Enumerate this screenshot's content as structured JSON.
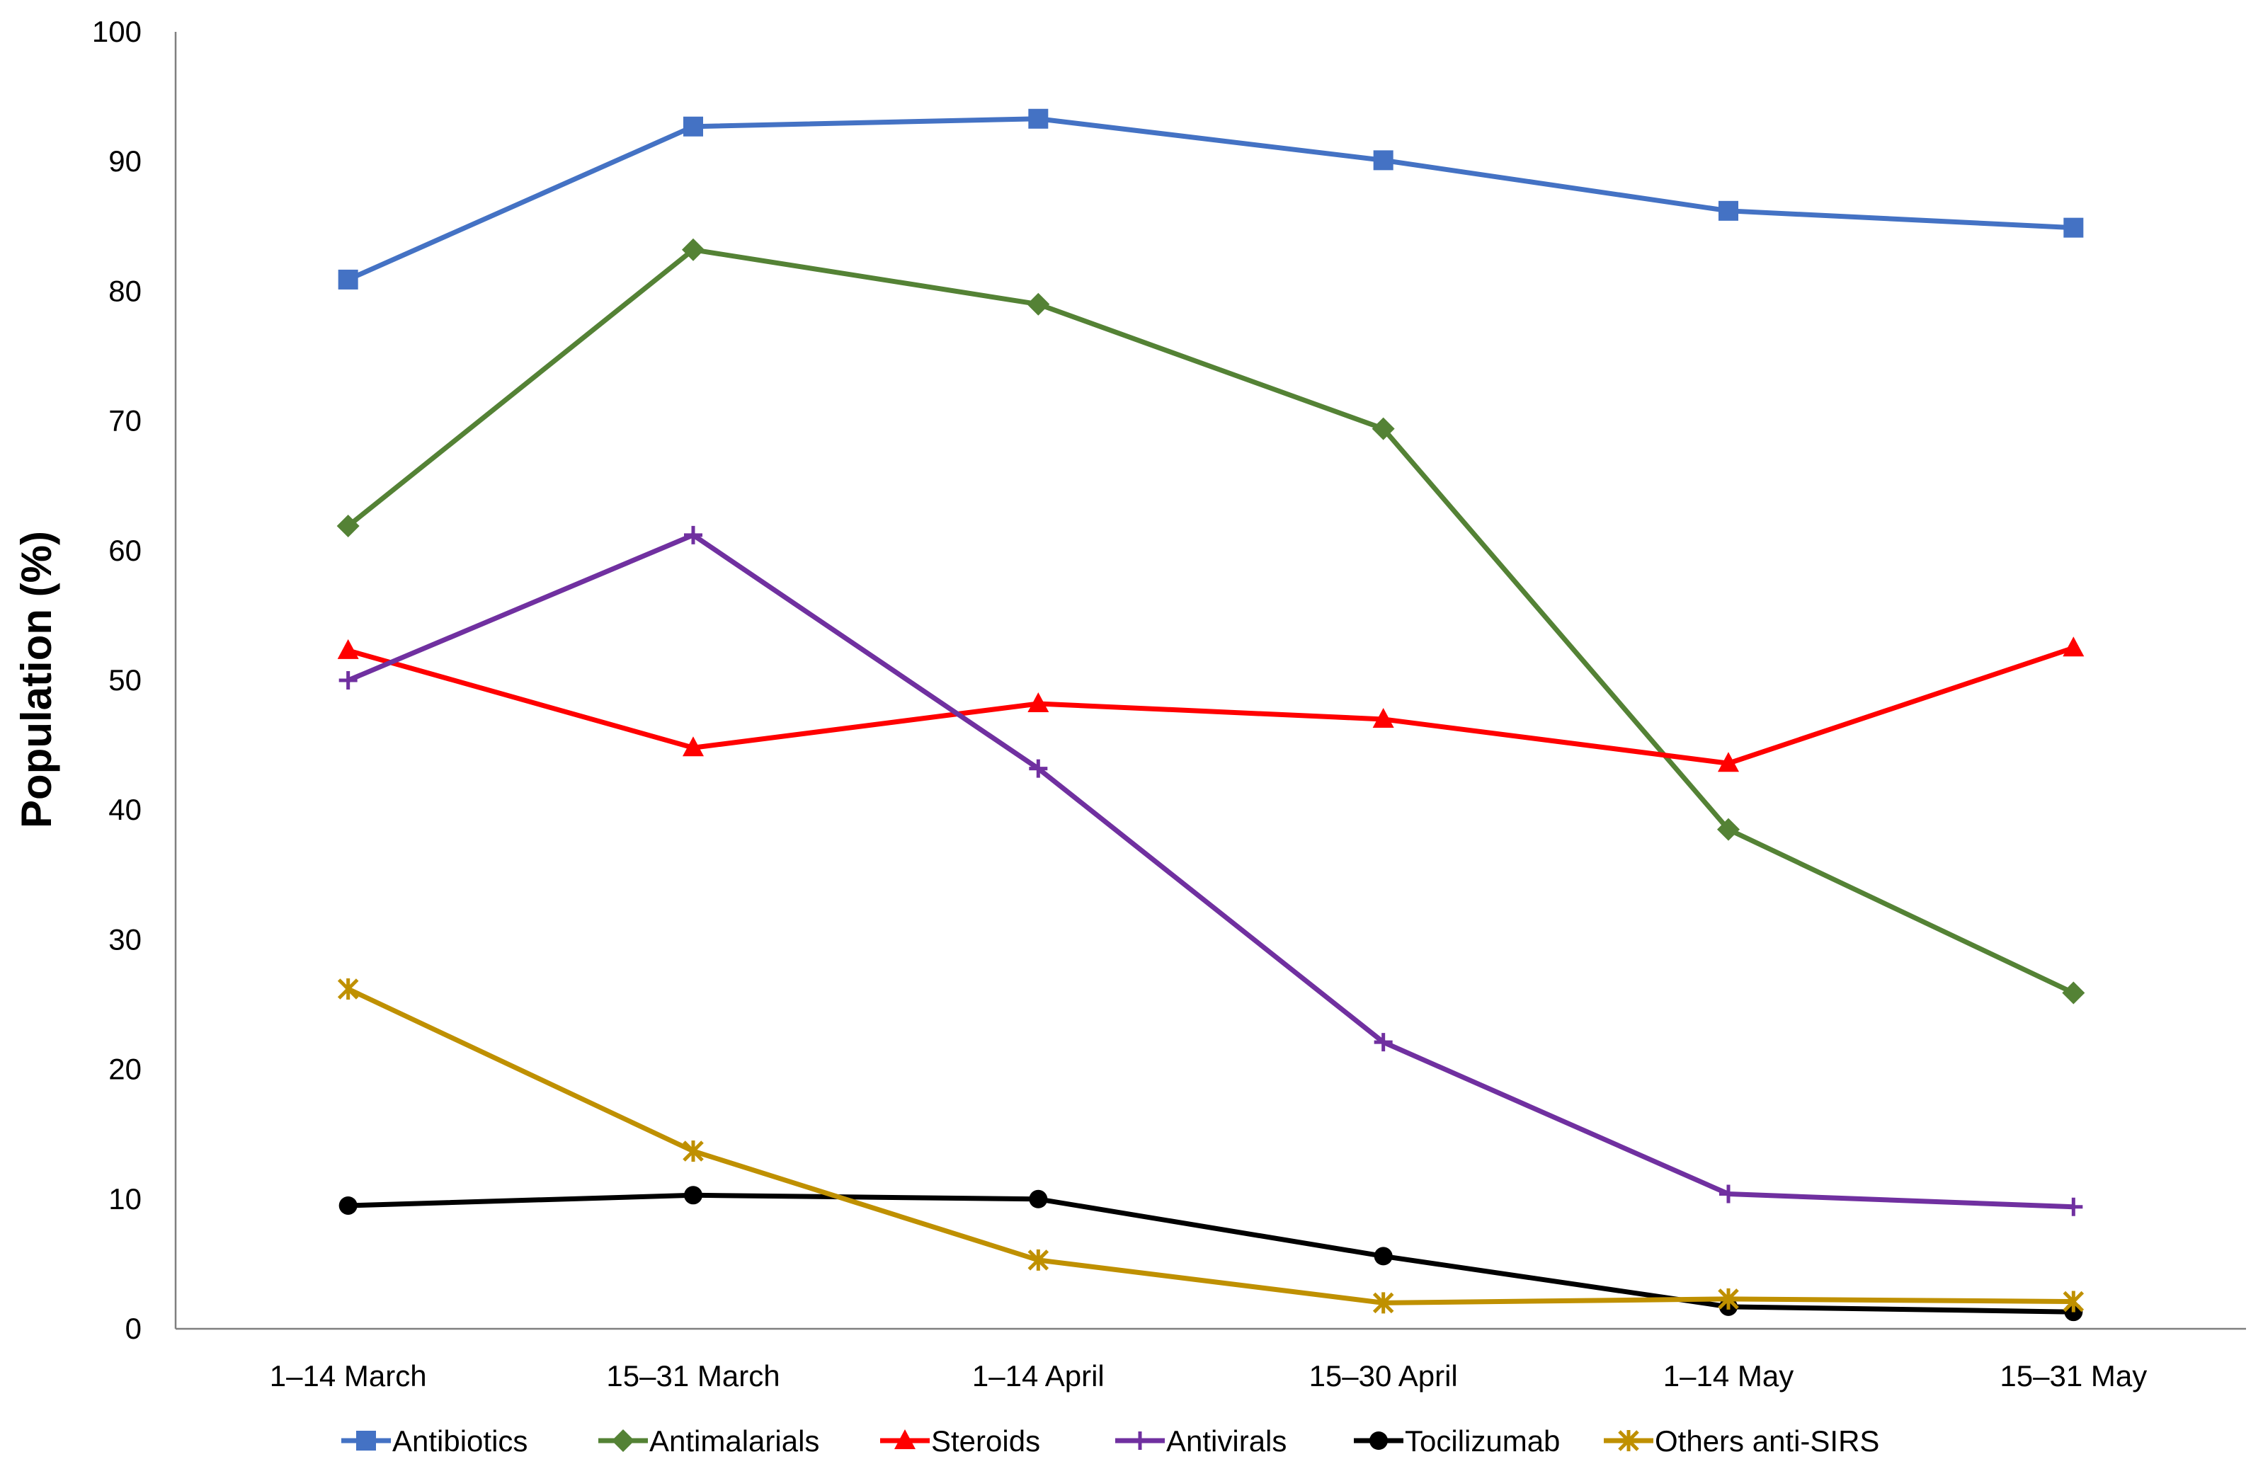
{
  "chart_data": {
    "type": "line",
    "title": "",
    "xlabel": "",
    "ylabel": "Population (%)",
    "ylim": [
      0,
      100
    ],
    "yticks": [
      0,
      10,
      20,
      30,
      40,
      50,
      60,
      70,
      80,
      90,
      100
    ],
    "grid": false,
    "legend_position": "bottom",
    "categories": [
      "1–14 March",
      "15–31 March",
      "1–14 April",
      "15–30 April",
      "1–14 May",
      "15–31 May"
    ],
    "series": [
      {
        "name": "Antibiotics",
        "color": "#4472C4",
        "marker": "square",
        "values": [
          80.9,
          92.7,
          93.3,
          90.1,
          86.2,
          84.9
        ]
      },
      {
        "name": "Antimalarials",
        "color": "#548235",
        "marker": "diamond",
        "values": [
          61.9,
          83.2,
          79.0,
          69.4,
          38.5,
          25.9
        ]
      },
      {
        "name": "Steroids",
        "color": "#FF0000",
        "marker": "triangle",
        "values": [
          52.3,
          44.8,
          48.2,
          47.0,
          43.6,
          52.5
        ]
      },
      {
        "name": "Antivirals",
        "color": "#7030A0",
        "marker": "plus",
        "values": [
          50.0,
          61.2,
          43.2,
          22.1,
          10.4,
          9.4
        ]
      },
      {
        "name": "Tocilizumab",
        "color": "#000000",
        "marker": "circle",
        "values": [
          9.5,
          10.3,
          10.0,
          5.6,
          1.7,
          1.3
        ]
      },
      {
        "name": "Others anti-SIRS",
        "color": "#BF9000",
        "marker": "star",
        "values": [
          26.2,
          13.7,
          5.3,
          2.0,
          2.3,
          2.1
        ]
      }
    ]
  }
}
